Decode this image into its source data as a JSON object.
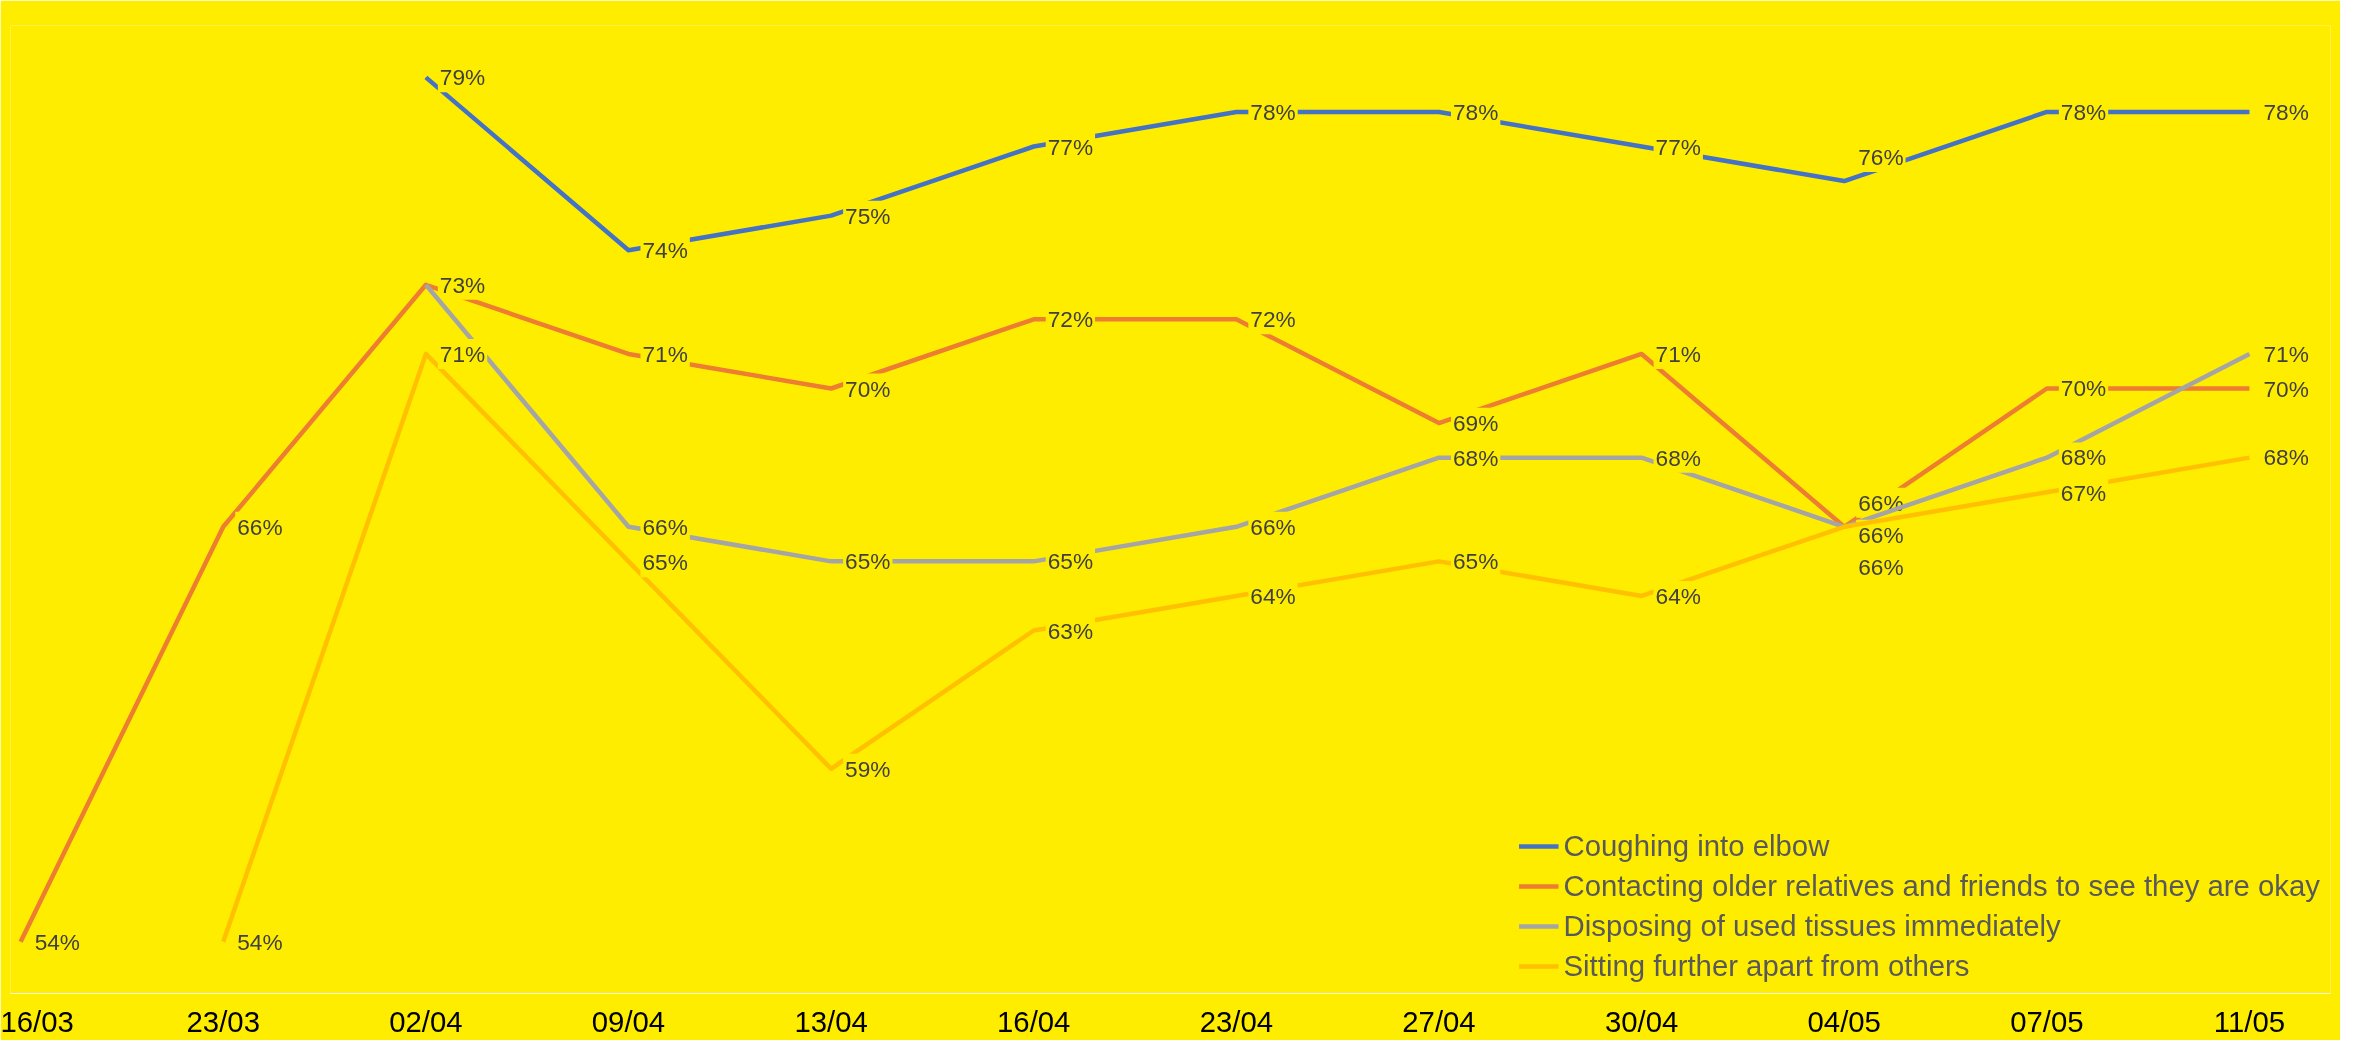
{
  "chart_data": {
    "type": "line",
    "categories": [
      "16/03",
      "23/03",
      "02/04",
      "09/04",
      "13/04",
      "16/04",
      "23/04",
      "27/04",
      "30/04",
      "04/05",
      "07/05",
      "11/05"
    ],
    "series": [
      {
        "name": "Coughing into elbow",
        "color": "#4472c4",
        "values": [
          null,
          null,
          79,
          74,
          75,
          77,
          78,
          78,
          77,
          76,
          78,
          78
        ],
        "value_labels": [
          null,
          null,
          "79%",
          "74%",
          "75%",
          "77%",
          "78%",
          "78%",
          "77%",
          "76%",
          "78%",
          "78%"
        ]
      },
      {
        "name": "Contacting older relatives and friends to see they are okay",
        "color": "#ed7d31",
        "values": [
          54,
          66,
          73,
          71,
          70,
          72,
          72,
          69,
          71,
          66,
          70,
          70
        ],
        "value_labels": [
          "54%",
          "66%",
          "73%",
          "71%",
          "70%",
          "72%",
          "72%",
          "69%",
          "71%",
          "66%",
          "70%",
          "70%"
        ]
      },
      {
        "name": "Disposing of used tissues immediately",
        "color": "#a5a5a5",
        "values": [
          null,
          null,
          73,
          66,
          65,
          65,
          66,
          68,
          68,
          66,
          68,
          71
        ],
        "value_labels": [
          null,
          null,
          null,
          "66%",
          "65%",
          "65%",
          "66%",
          "68%",
          "68%",
          "66%",
          "68%",
          "71%"
        ]
      },
      {
        "name": "Sitting further apart from others",
        "color": "#ffc000",
        "values": [
          null,
          54,
          71,
          65,
          59,
          63,
          64,
          65,
          64,
          66,
          67,
          68
        ],
        "value_labels": [
          null,
          "54%",
          "71%",
          "65%",
          "59%",
          "63%",
          "64%",
          "65%",
          "64%",
          "66%",
          "67%",
          "68%"
        ]
      }
    ],
    "legend": "bottom right",
    "tick_labels": "x",
    "line_style": "solid"
  }
}
